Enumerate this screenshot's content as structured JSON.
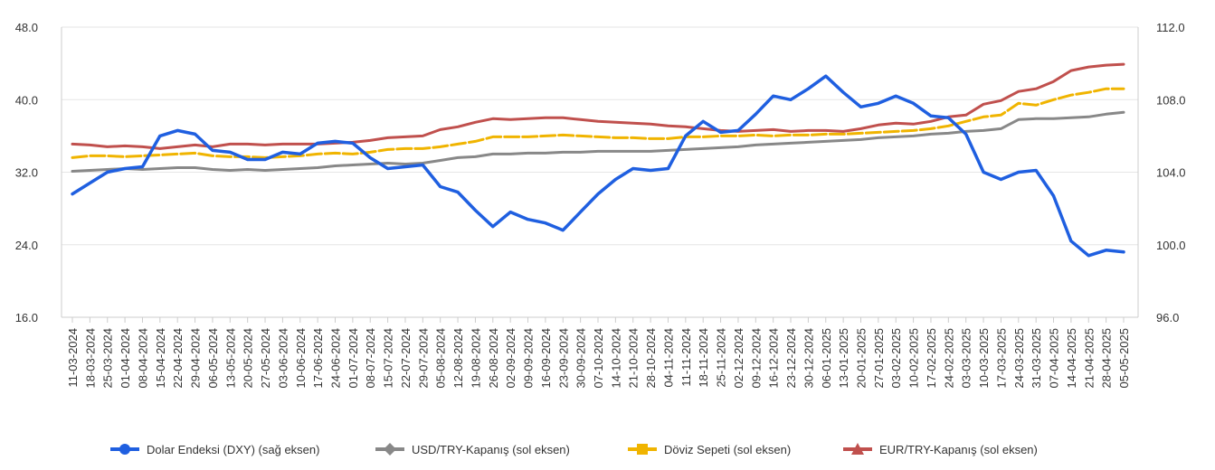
{
  "chart_data": {
    "type": "line",
    "left_axis": {
      "min": 16,
      "max": 48,
      "ticks": [
        "16.0",
        "24.0",
        "32.0",
        "40.0",
        "48.0"
      ]
    },
    "right_axis": {
      "min": 96,
      "max": 112,
      "ticks": [
        "96.0",
        "100.0",
        "104.0",
        "108.0",
        "112.0"
      ]
    },
    "grid": true,
    "legend_position": "bottom",
    "x_labels": [
      "11-03-2024",
      "18-03-2024",
      "25-03-2024",
      "01-04-2024",
      "08-04-2024",
      "15-04-2024",
      "22-04-2024",
      "29-04-2024",
      "06-05-2024",
      "13-05-2024",
      "20-05-2024",
      "27-05-2024",
      "03-06-2024",
      "10-06-2024",
      "17-06-2024",
      "24-06-2024",
      "01-07-2024",
      "08-07-2024",
      "15-07-2024",
      "22-07-2024",
      "29-07-2024",
      "05-08-2024",
      "12-08-2024",
      "19-08-2024",
      "26-08-2024",
      "02-09-2024",
      "09-09-2024",
      "16-09-2024",
      "23-09-2024",
      "30-09-2024",
      "07-10-2024",
      "14-10-2024",
      "21-10-2024",
      "28-10-2024",
      "04-11-2024",
      "11-11-2024",
      "18-11-2024",
      "25-11-2024",
      "02-12-2024",
      "09-12-2024",
      "16-12-2024",
      "23-12-2024",
      "30-12-2024",
      "06-01-2025",
      "13-01-2025",
      "20-01-2025",
      "27-01-2025",
      "03-02-2025",
      "10-02-2025",
      "17-02-2025",
      "24-02-2025",
      "03-03-2025",
      "10-03-2025",
      "17-03-2025",
      "24-03-2025",
      "31-03-2025",
      "07-04-2025",
      "14-04-2025",
      "21-04-2025",
      "28-04-2025",
      "05-05-2025"
    ],
    "series": [
      {
        "name": "Dolar Endeksi (DXY) (sağ eksen)",
        "axis": "right",
        "color": "#1f5fe0",
        "marker": "circle",
        "values": [
          102.8,
          103.4,
          104.0,
          104.2,
          104.3,
          106.0,
          106.3,
          106.1,
          105.2,
          105.1,
          104.7,
          104.7,
          105.1,
          105.0,
          105.6,
          105.7,
          105.6,
          104.8,
          104.2,
          104.3,
          104.4,
          103.2,
          102.9,
          101.9,
          101.0,
          101.8,
          101.4,
          101.2,
          100.8,
          101.8,
          102.8,
          103.6,
          104.2,
          104.1,
          104.2,
          106.0,
          106.8,
          106.2,
          106.3,
          107.2,
          108.2,
          108.0,
          108.6,
          109.3,
          108.4,
          107.6,
          107.8,
          108.2,
          107.8,
          107.1,
          107.0,
          106.1,
          104.0,
          103.6,
          104.0,
          104.1,
          102.7,
          100.2,
          99.4,
          99.7,
          99.6
        ]
      },
      {
        "name": "USD/TRY-Kapanış (sol eksen)",
        "axis": "left",
        "color": "#888888",
        "marker": "diamond",
        "values": [
          32.1,
          32.2,
          32.3,
          32.4,
          32.3,
          32.4,
          32.5,
          32.5,
          32.3,
          32.2,
          32.3,
          32.2,
          32.3,
          32.4,
          32.5,
          32.7,
          32.8,
          32.9,
          33.0,
          32.9,
          33.0,
          33.3,
          33.6,
          33.7,
          34.0,
          34.0,
          34.1,
          34.1,
          34.2,
          34.2,
          34.3,
          34.3,
          34.3,
          34.3,
          34.4,
          34.5,
          34.6,
          34.7,
          34.8,
          35.0,
          35.1,
          35.2,
          35.3,
          35.4,
          35.5,
          35.6,
          35.8,
          35.9,
          36.0,
          36.2,
          36.3,
          36.5,
          36.6,
          36.8,
          37.8,
          37.9,
          37.9,
          38.0,
          38.1,
          38.4,
          38.6
        ]
      },
      {
        "name": "Döviz Sepeti (sol eksen)",
        "axis": "left",
        "color": "#f0b400",
        "marker": "square",
        "values": [
          33.6,
          33.8,
          33.8,
          33.7,
          33.8,
          33.9,
          34.0,
          34.1,
          33.8,
          33.7,
          33.7,
          33.6,
          33.7,
          33.8,
          34.0,
          34.1,
          34.0,
          34.2,
          34.5,
          34.6,
          34.6,
          34.8,
          35.1,
          35.4,
          35.9,
          35.9,
          35.9,
          36.0,
          36.1,
          36.0,
          35.9,
          35.8,
          35.8,
          35.7,
          35.7,
          35.9,
          35.9,
          36.0,
          36.0,
          36.1,
          36.0,
          36.1,
          36.1,
          36.2,
          36.2,
          36.3,
          36.4,
          36.5,
          36.6,
          36.8,
          37.1,
          37.6,
          38.1,
          38.3,
          39.6,
          39.4,
          40.0,
          40.5,
          40.8,
          41.2,
          41.2
        ]
      },
      {
        "name": "EUR/TRY-Kapanış (sol eksen)",
        "axis": "left",
        "color": "#c0504d",
        "marker": "triangle",
        "values": [
          35.1,
          35.0,
          34.8,
          34.9,
          34.8,
          34.6,
          34.8,
          35.0,
          34.8,
          35.1,
          35.1,
          35.0,
          35.1,
          35.1,
          35.1,
          35.2,
          35.3,
          35.5,
          35.8,
          35.9,
          36.0,
          36.7,
          37.0,
          37.5,
          37.9,
          37.8,
          37.9,
          38.0,
          38.0,
          37.8,
          37.6,
          37.5,
          37.4,
          37.3,
          37.1,
          37.0,
          36.8,
          36.6,
          36.5,
          36.6,
          36.7,
          36.5,
          36.6,
          36.6,
          36.5,
          36.8,
          37.2,
          37.4,
          37.3,
          37.6,
          38.1,
          38.3,
          39.5,
          39.9,
          40.9,
          41.2,
          42.0,
          43.2,
          43.6,
          43.8,
          43.9
        ]
      }
    ]
  }
}
